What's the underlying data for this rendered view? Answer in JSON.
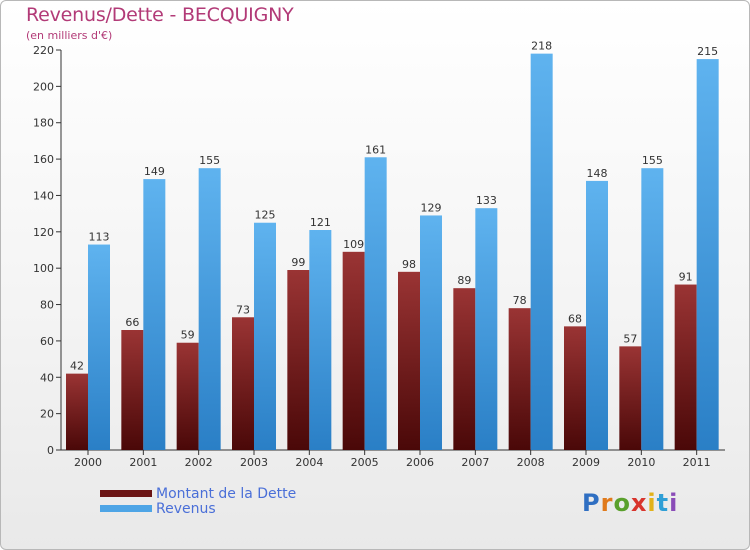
{
  "chart_data": {
    "type": "bar",
    "title": "Revenus/Dette - BECQUIGNY",
    "subtitle": "(en milliers d'€)",
    "xlabel": "",
    "ylabel": "",
    "ylim": [
      0,
      220
    ],
    "yticks": [
      0,
      20,
      40,
      60,
      80,
      100,
      120,
      140,
      160,
      180,
      200,
      220
    ],
    "grid": false,
    "legend_position": "bottom-left",
    "categories": [
      "2000",
      "2001",
      "2002",
      "2003",
      "2004",
      "2005",
      "2006",
      "2007",
      "2008",
      "2009",
      "2010",
      "2011"
    ],
    "series": [
      {
        "name": "Montant de la Dette",
        "color": "#6b1515",
        "values": [
          42,
          66,
          59,
          73,
          99,
          109,
          98,
          89,
          78,
          68,
          57,
          91
        ]
      },
      {
        "name": "Revenus",
        "color": "#4ea5e6",
        "values": [
          113,
          149,
          155,
          125,
          121,
          161,
          129,
          133,
          218,
          148,
          155,
          215
        ]
      }
    ]
  },
  "brand": {
    "letters": [
      "P",
      "r",
      "o",
      "x",
      "i",
      "t",
      "i"
    ]
  }
}
